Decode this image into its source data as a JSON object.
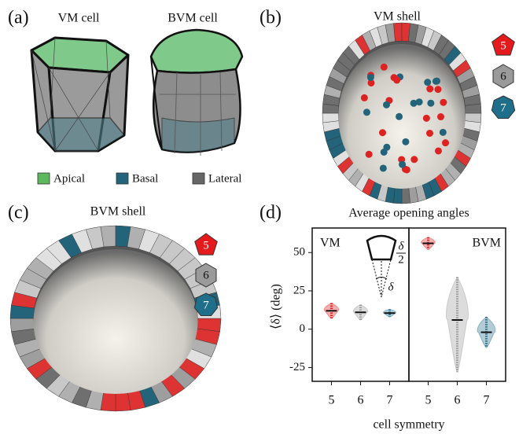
{
  "panel_a": {
    "label": "(a)",
    "titles": [
      "VM cell",
      "BVM cell"
    ],
    "legend": [
      {
        "name": "Apical",
        "color": "#5cb85c"
      },
      {
        "name": "Basal",
        "color": "#23647a"
      },
      {
        "name": "Lateral",
        "color": "#666666"
      }
    ]
  },
  "panel_b": {
    "label": "(b)",
    "title": "VM shell",
    "badges": [
      "5",
      "6",
      "7"
    ]
  },
  "panel_c": {
    "label": "(c)",
    "title": "BVM shell",
    "badges": [
      "5",
      "6",
      "7"
    ]
  },
  "panel_d": {
    "label": "(d)"
  },
  "chart_data": {
    "type": "violin",
    "title": "Average opening angles",
    "xlabel": "cell symmetry",
    "ylabel": "⟨δ⟩ (deg)",
    "ylim": [
      -34,
      66
    ],
    "yticks": [
      -25,
      0,
      25,
      50
    ],
    "colors": [
      "#e41a1c",
      "#9a9a9a",
      "#1f6e8a"
    ],
    "inset_labels": [
      "δ",
      "2",
      "δ"
    ],
    "panels": [
      {
        "name": "VM",
        "categories": [
          "5",
          "6",
          "7"
        ],
        "means": [
          12,
          11,
          10.5
        ],
        "mins": [
          7,
          6,
          8
        ],
        "maxs": [
          17,
          16,
          13
        ]
      },
      {
        "name": "BVM",
        "categories": [
          "5",
          "6",
          "7"
        ],
        "means": [
          56,
          6,
          -2
        ],
        "mins": [
          52,
          -28,
          -12
        ],
        "maxs": [
          60,
          34,
          8
        ]
      }
    ]
  }
}
